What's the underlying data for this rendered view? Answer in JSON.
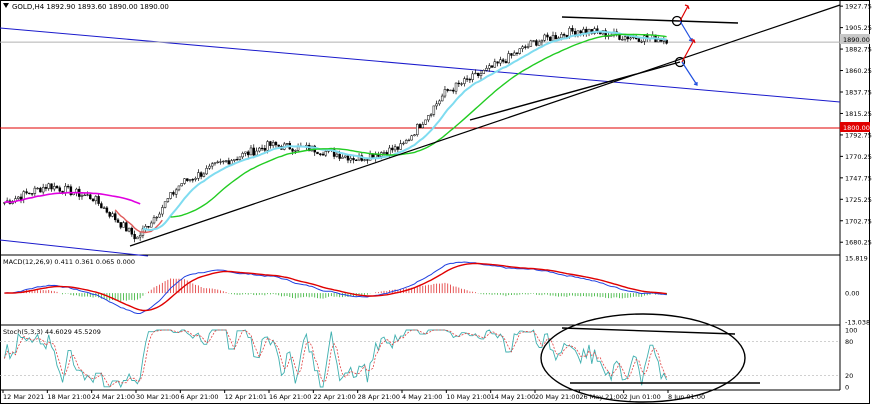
{
  "header": {
    "symbol_line": "GOLD,H4  1892.90 1893.60 1890.00 1890.00",
    "menu_icon": "triangle-down-icon"
  },
  "price_panel": {
    "ylim": [
      1670,
      1930
    ],
    "ticks": [
      "1927.75",
      "1905.25",
      "1882.75",
      "1860.25",
      "1837.75",
      "1815.25",
      "1792.75",
      "1770.25",
      "1747.75",
      "1725.25",
      "1702.75",
      "1680.25"
    ],
    "current_price": 1890.0,
    "current_price_label": "1890.00",
    "horizontal_level": 1800.0,
    "horizontal_level_label": "1800.00",
    "colors": {
      "candle_up": "#000000",
      "candle_down": "#000000",
      "ma_fast": "#e05a5a",
      "ma_mid": "#7fdcf0",
      "ma_slow": "#22cc22",
      "ma_long": "#e000e0",
      "channel": "#1a1acc",
      "level": "#e00000",
      "trendline": "#000000",
      "arrow_up": "#e00000",
      "arrow_down": "#2050e0"
    }
  },
  "macd_panel": {
    "label": "MACD(12,26,9) 0.411 0.361 0.065 0.000",
    "ticks": [
      "15.819",
      "0.00",
      "-13.038"
    ],
    "ylim": [
      -13.038,
      15.819
    ]
  },
  "stoch_panel": {
    "label": "Stoch(5,3,3) 44.6029 45.5209",
    "ticks": [
      "100",
      "80",
      "20",
      "0"
    ],
    "ylim": [
      0,
      100
    ]
  },
  "x_axis": {
    "labels": [
      "12 Mar 2021",
      "18 Mar 21:00",
      "24 Mar 21:00",
      "30 Mar 21:00",
      "6 Apr 21:00",
      "12 Apr 21:01",
      "16 Apr 21:00",
      "22 Apr 21:00",
      "28 Apr 21:00",
      "4 May 21:00",
      "10 May 21:00",
      "14 May 21:00",
      "20 May 21:00",
      "26 May 21:00",
      "2 Jun 01:00",
      "8 Jun 01:00"
    ]
  },
  "chart_data": {
    "type": "line",
    "title": "GOLD,H4",
    "x": [
      "12 Mar 2021",
      "18 Mar 21:00",
      "24 Mar 21:00",
      "30 Mar 21:00",
      "6 Apr 21:00",
      "12 Apr 21:01",
      "16 Apr 21:00",
      "22 Apr 21:00",
      "28 Apr 21:00",
      "4 May 21:00",
      "10 May 21:00",
      "14 May 21:00",
      "20 May 21:00",
      "26 May 21:00",
      "2 Jun 01:00",
      "8 Jun 01:00"
    ],
    "series": [
      {
        "values": [
          1722,
          1740,
          1727,
          1684,
          1742,
          1765,
          1782,
          1778,
          1768,
          1780,
          1838,
          1862,
          1890,
          1903,
          1896,
          1893
        ]
      }
    ],
    "ylim": [
      1670,
      1930
    ]
  }
}
